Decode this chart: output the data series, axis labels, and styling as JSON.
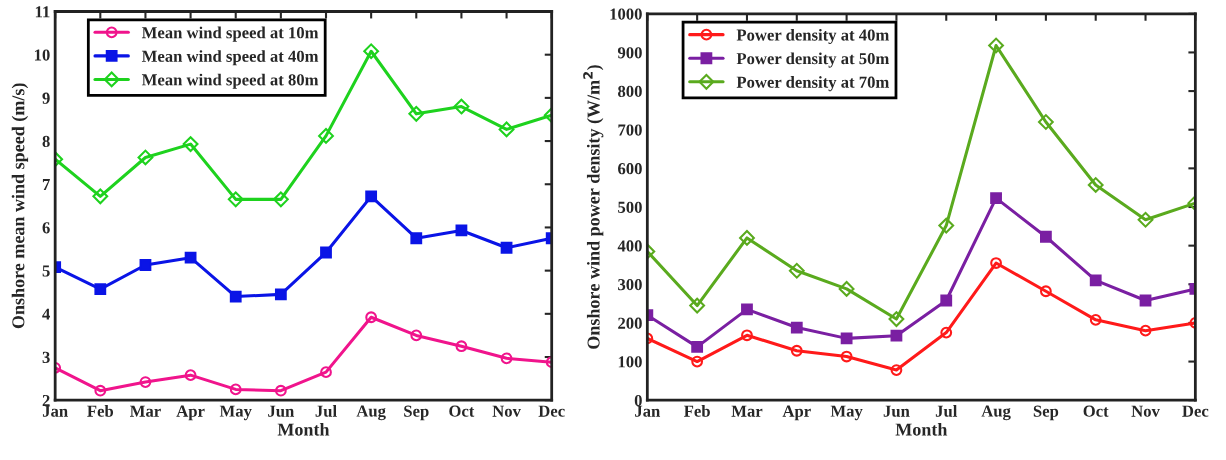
{
  "chart_data": [
    {
      "type": "line",
      "xlabel": "Month",
      "ylabel": "Onshore mean wind speed (m/s)",
      "categories": [
        "Jan",
        "Feb",
        "Mar",
        "Apr",
        "May",
        "Jun",
        "Jul",
        "Aug",
        "Sep",
        "Oct",
        "Nov",
        "Dec"
      ],
      "ylim": [
        2,
        11
      ],
      "yticks": [
        2,
        3,
        4,
        5,
        6,
        7,
        8,
        9,
        10,
        11
      ],
      "legend": "top left",
      "grid": false,
      "line_style": "solid",
      "series": [
        {
          "name": "Mean wind speed at 10m",
          "color": "#f0148c",
          "marker": "circle",
          "values": [
            2.75,
            2.22,
            2.42,
            2.58,
            2.25,
            2.22,
            2.65,
            3.92,
            3.5,
            3.25,
            2.97,
            2.88
          ]
        },
        {
          "name": "Mean wind speed at 40m",
          "color": "#0a14e6",
          "marker": "square",
          "values": [
            5.08,
            4.57,
            5.13,
            5.3,
            4.4,
            4.45,
            5.42,
            6.72,
            5.75,
            5.93,
            5.53,
            5.75
          ]
        },
        {
          "name": "Mean wind speed at 80m",
          "color": "#1ed21e",
          "marker": "diamond",
          "values": [
            7.58,
            6.72,
            7.62,
            7.93,
            6.65,
            6.65,
            8.12,
            10.08,
            8.63,
            8.8,
            8.27,
            8.6
          ]
        }
      ]
    },
    {
      "type": "line",
      "xlabel": "Month",
      "ylabel": "Onshore wind power density (W/m$^{2}$)",
      "categories": [
        "Jan",
        "Feb",
        "Mar",
        "Apr",
        "May",
        "Jun",
        "Jul",
        "Aug",
        "Sep",
        "Oct",
        "Nov",
        "Dec"
      ],
      "ylim": [
        0,
        1000
      ],
      "yticks": [
        0,
        100,
        200,
        300,
        400,
        500,
        600,
        700,
        800,
        900,
        1000
      ],
      "legend": "top left",
      "grid": false,
      "line_style": "solid",
      "series": [
        {
          "name": "Power density at 40m",
          "color": "#ff1a1a",
          "marker": "circle",
          "values": [
            160,
            100,
            168,
            128,
            113,
            78,
            175,
            355,
            282,
            208,
            180,
            200
          ]
        },
        {
          "name": "Power density at 50m",
          "color": "#7a1fa2",
          "marker": "square",
          "values": [
            220,
            138,
            235,
            188,
            160,
            167,
            258,
            523,
            423,
            310,
            258,
            288
          ]
        },
        {
          "name": "Power density at 70m",
          "color": "#5aaa1e",
          "marker": "diamond",
          "values": [
            385,
            245,
            420,
            335,
            288,
            210,
            452,
            918,
            720,
            557,
            467,
            510
          ]
        }
      ]
    }
  ]
}
